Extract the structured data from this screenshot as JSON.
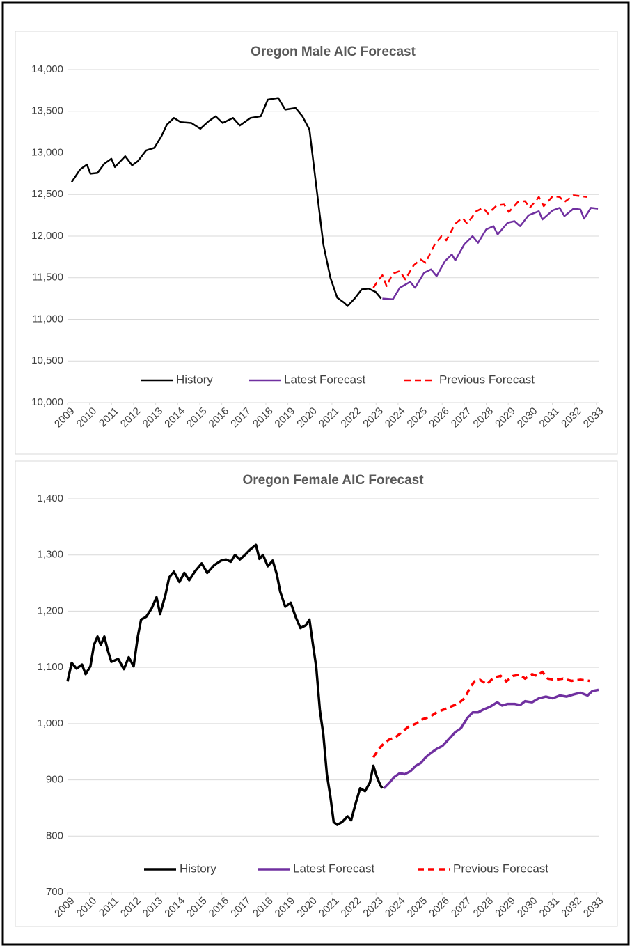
{
  "chart_data": [
    {
      "type": "line",
      "title": "Oregon Male AIC Forecast",
      "xlim": [
        2009,
        2033.1
      ],
      "xticks": [
        2009,
        2010,
        2011,
        2012,
        2013,
        2014,
        2015,
        2016,
        2017,
        2018,
        2019,
        2020,
        2021,
        2022,
        2023,
        2024,
        2025,
        2026,
        2027,
        2028,
        2029,
        2030,
        2031,
        2032,
        2033
      ],
      "ylim": [
        10000,
        14000
      ],
      "yticks": [
        {
          "value": 10000,
          "label": "10,000"
        },
        {
          "value": 10500,
          "label": "10,500"
        },
        {
          "value": 11000,
          "label": "11,000"
        },
        {
          "value": 11500,
          "label": "11,500"
        },
        {
          "value": 12000,
          "label": "12,000"
        },
        {
          "value": 12500,
          "label": "12,500"
        },
        {
          "value": 13000,
          "label": "13,000"
        },
        {
          "value": 13500,
          "label": "13,500"
        },
        {
          "value": 14000,
          "label": "14,000"
        }
      ],
      "grid": true,
      "legend": "bottom",
      "series": [
        {
          "name": "History",
          "color": "#000000",
          "x": [
            2009.19,
            2009.57,
            2009.88,
            2010.04,
            2010.36,
            2010.67,
            2010.99,
            2011.15,
            2011.62,
            2011.93,
            2012.19,
            2012.57,
            2012.94,
            2013.26,
            2013.51,
            2013.83,
            2014.14,
            2014.62,
            2015.03,
            2015.4,
            2015.72,
            2016.04,
            2016.51,
            2016.82,
            2017.3,
            2017.77,
            2018.09,
            2018.56,
            2018.88,
            2019.35,
            2019.66,
            2019.98,
            2020.29,
            2020.61,
            2020.93,
            2021.24,
            2021.56,
            2021.71,
            2022.03,
            2022.35,
            2022.66,
            2022.98,
            2023.23
          ],
          "values": [
            12650,
            12800,
            12860,
            12750,
            12760,
            12870,
            12930,
            12830,
            12960,
            12850,
            12900,
            13030,
            13060,
            13200,
            13340,
            13420,
            13370,
            13360,
            13290,
            13380,
            13440,
            13360,
            13420,
            13330,
            13420,
            13440,
            13640,
            13660,
            13520,
            13540,
            13440,
            13280,
            12600,
            11900,
            11500,
            11260,
            11200,
            11160,
            11250,
            11360,
            11370,
            11330,
            11250
          ]
        },
        {
          "name": "Latest Forecast",
          "color": "#7030a0",
          "x": [
            2023.29,
            2023.76,
            2024.08,
            2024.55,
            2024.77,
            2025.18,
            2025.5,
            2025.75,
            2026.13,
            2026.44,
            2026.6,
            2027.0,
            2027.38,
            2027.63,
            2028.0,
            2028.33,
            2028.52,
            2028.97,
            2029.28,
            2029.54,
            2029.92,
            2030.39,
            2030.55,
            2031.02,
            2031.33,
            2031.55,
            2031.96,
            2032.28,
            2032.44,
            2032.75,
            2033.07
          ],
          "values": [
            11250,
            11240,
            11380,
            11450,
            11380,
            11560,
            11600,
            11520,
            11700,
            11780,
            11710,
            11900,
            12000,
            11920,
            12080,
            12120,
            12020,
            12160,
            12180,
            12120,
            12250,
            12300,
            12200,
            12310,
            12340,
            12240,
            12330,
            12320,
            12210,
            12340,
            12330
          ]
        },
        {
          "name": "Previous Forecast",
          "color": "#ff0000",
          "dash": true,
          "x": [
            2022.88,
            2023.13,
            2023.29,
            2023.48,
            2023.76,
            2024.08,
            2024.33,
            2024.71,
            2025.03,
            2025.25,
            2025.66,
            2025.97,
            2026.19,
            2026.6,
            2026.92,
            2027.14,
            2027.55,
            2027.86,
            2028.08,
            2028.49,
            2028.81,
            2029.03,
            2029.44,
            2029.76,
            2029.98,
            2030.39,
            2030.61,
            2031.02,
            2031.33,
            2031.55,
            2031.96,
            2032.28,
            2032.59
          ],
          "values": [
            11380,
            11480,
            11530,
            11400,
            11550,
            11580,
            11480,
            11650,
            11720,
            11680,
            11900,
            12000,
            11950,
            12150,
            12220,
            12150,
            12300,
            12340,
            12270,
            12370,
            12380,
            12290,
            12410,
            12420,
            12340,
            12470,
            12360,
            12480,
            12470,
            12410,
            12490,
            12480,
            12470
          ]
        }
      ]
    },
    {
      "type": "line",
      "title": "Oregon Female AIC Forecast",
      "xlim": [
        2009,
        2033.1
      ],
      "xticks": [
        2009,
        2010,
        2011,
        2012,
        2013,
        2014,
        2015,
        2016,
        2017,
        2018,
        2019,
        2020,
        2021,
        2022,
        2023,
        2024,
        2025,
        2026,
        2027,
        2028,
        2029,
        2030,
        2031,
        2032,
        2033
      ],
      "ylim": [
        700,
        1400
      ],
      "yticks": [
        700,
        800,
        900,
        {
          "value": 1000,
          "label": "1,000"
        },
        {
          "value": 1100,
          "label": "1,100"
        },
        {
          "value": 1200,
          "label": "1,200"
        },
        {
          "value": 1300,
          "label": "1,300"
        },
        {
          "value": 1400,
          "label": "1,400"
        }
      ],
      "grid": true,
      "legend": "bottom",
      "series": [
        {
          "name": "History",
          "color": "#000000",
          "x": [
            2009.0,
            2009.19,
            2009.41,
            2009.66,
            2009.82,
            2010.04,
            2010.2,
            2010.36,
            2010.51,
            2010.67,
            2010.83,
            2010.99,
            2011.3,
            2011.56,
            2011.78,
            2012.0,
            2012.19,
            2012.34,
            2012.57,
            2012.82,
            2013.04,
            2013.2,
            2013.45,
            2013.61,
            2013.83,
            2014.08,
            2014.3,
            2014.52,
            2014.77,
            2015.09,
            2015.34,
            2015.66,
            2015.97,
            2016.19,
            2016.41,
            2016.6,
            2016.82,
            2017.05,
            2017.3,
            2017.55,
            2017.71,
            2017.87,
            2018.09,
            2018.31,
            2018.5,
            2018.65,
            2018.88,
            2019.13,
            2019.35,
            2019.57,
            2019.82,
            2019.98,
            2020.14,
            2020.29,
            2020.45,
            2020.61,
            2020.77,
            2020.93,
            2021.08,
            2021.24,
            2021.46,
            2021.71,
            2021.87,
            2022.09,
            2022.28,
            2022.5,
            2022.72,
            2022.88,
            2023.04,
            2023.2,
            2023.29
          ],
          "values": [
            1075,
            1108,
            1098,
            1105,
            1088,
            1102,
            1140,
            1155,
            1140,
            1155,
            1130,
            1110,
            1115,
            1097,
            1118,
            1102,
            1155,
            1185,
            1190,
            1205,
            1225,
            1195,
            1230,
            1260,
            1270,
            1252,
            1268,
            1255,
            1270,
            1285,
            1268,
            1282,
            1290,
            1292,
            1288,
            1300,
            1292,
            1300,
            1310,
            1318,
            1293,
            1300,
            1280,
            1290,
            1265,
            1235,
            1208,
            1215,
            1190,
            1170,
            1175,
            1185,
            1140,
            1100,
            1025,
            980,
            910,
            870,
            825,
            820,
            825,
            835,
            828,
            860,
            885,
            880,
            895,
            925,
            905,
            890,
            885
          ]
        },
        {
          "name": "Latest Forecast",
          "color": "#7030a0",
          "x": [
            2023.36,
            2023.61,
            2023.83,
            2024.08,
            2024.3,
            2024.55,
            2024.81,
            2025.03,
            2025.25,
            2025.5,
            2025.75,
            2026.01,
            2026.29,
            2026.6,
            2026.86,
            2027.14,
            2027.39,
            2027.64,
            2027.87,
            2028.18,
            2028.5,
            2028.72,
            2028.97,
            2029.29,
            2029.54,
            2029.76,
            2030.08,
            2030.39,
            2030.71,
            2031.02,
            2031.34,
            2031.65,
            2031.97,
            2032.28,
            2032.6,
            2032.82,
            2033.1
          ],
          "values": [
            885,
            895,
            905,
            912,
            910,
            915,
            925,
            930,
            940,
            948,
            955,
            960,
            972,
            985,
            992,
            1010,
            1020,
            1020,
            1025,
            1030,
            1038,
            1032,
            1035,
            1035,
            1033,
            1040,
            1038,
            1045,
            1048,
            1045,
            1050,
            1048,
            1052,
            1055,
            1050,
            1058,
            1060
          ]
        },
        {
          "name": "Previous Forecast",
          "color": "#ff0000",
          "dash": true,
          "x": [
            2022.88,
            2023.13,
            2023.36,
            2023.61,
            2023.86,
            2024.18,
            2024.49,
            2024.81,
            2025.12,
            2025.44,
            2025.75,
            2026.07,
            2026.38,
            2026.7,
            2027.02,
            2027.24,
            2027.46,
            2027.71,
            2028.03,
            2028.34,
            2028.66,
            2028.91,
            2029.22,
            2029.54,
            2029.76,
            2030.08,
            2030.3,
            2030.55,
            2030.8,
            2031.12,
            2031.49,
            2031.87,
            2032.28,
            2032.69
          ],
          "values": [
            940,
            955,
            965,
            972,
            975,
            985,
            995,
            1000,
            1008,
            1012,
            1020,
            1025,
            1030,
            1035,
            1045,
            1062,
            1075,
            1078,
            1070,
            1082,
            1085,
            1075,
            1085,
            1087,
            1080,
            1088,
            1085,
            1092,
            1080,
            1078,
            1080,
            1076,
            1078,
            1076
          ]
        }
      ]
    }
  ]
}
